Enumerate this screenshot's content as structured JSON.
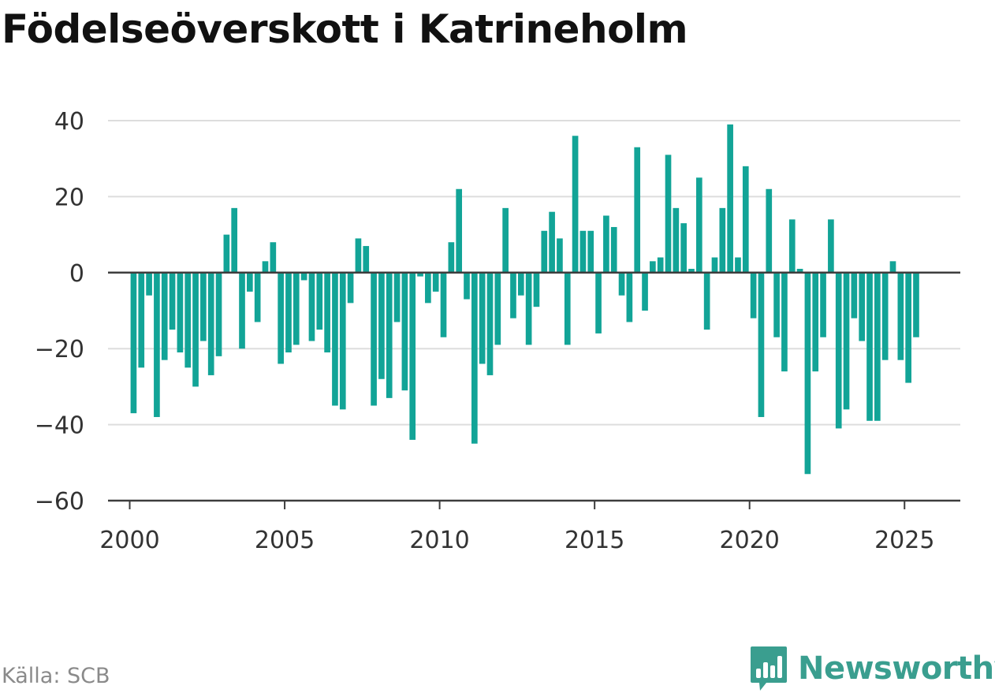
{
  "title": "Födelseöverskott i Katrineholm",
  "source": "Källa: SCB",
  "brand": {
    "name": "Newsworthy",
    "icon": "newsworthy-logo-icon",
    "color": "#3a9e8f"
  },
  "chart_data": {
    "type": "bar",
    "title": "Födelseöverskott i Katrineholm",
    "xlabel": "",
    "ylabel": "",
    "ylim": [
      -60,
      40
    ],
    "xlim": [
      1999.3,
      2026.8
    ],
    "y_ticks": [
      40,
      20,
      0,
      -20,
      -40,
      -60
    ],
    "y_tick_labels": [
      "40",
      "20",
      "0",
      "−20",
      "−40",
      "−60"
    ],
    "x_ticks": [
      2000,
      2005,
      2010,
      2015,
      2020,
      2025
    ],
    "x_tick_labels": [
      "2000",
      "2005",
      "2010",
      "2015",
      "2020",
      "2025"
    ],
    "grid": true,
    "bar_color": "#12a497",
    "frequency": "quarterly",
    "x": [
      "2000 Q1",
      "2000 Q2",
      "2000 Q3",
      "2000 Q4",
      "2001 Q1",
      "2001 Q2",
      "2001 Q3",
      "2001 Q4",
      "2002 Q1",
      "2002 Q2",
      "2002 Q3",
      "2002 Q4",
      "2003 Q1",
      "2003 Q2",
      "2003 Q3",
      "2003 Q4",
      "2004 Q1",
      "2004 Q2",
      "2004 Q3",
      "2004 Q4",
      "2005 Q1",
      "2005 Q2",
      "2005 Q3",
      "2005 Q4",
      "2006 Q1",
      "2006 Q2",
      "2006 Q3",
      "2006 Q4",
      "2007 Q1",
      "2007 Q2",
      "2007 Q3",
      "2007 Q4",
      "2008 Q1",
      "2008 Q2",
      "2008 Q3",
      "2008 Q4",
      "2009 Q1",
      "2009 Q2",
      "2009 Q3",
      "2009 Q4",
      "2010 Q1",
      "2010 Q2",
      "2010 Q3",
      "2010 Q4",
      "2011 Q1",
      "2011 Q2",
      "2011 Q3",
      "2011 Q4",
      "2012 Q1",
      "2012 Q2",
      "2012 Q3",
      "2012 Q4",
      "2013 Q1",
      "2013 Q2",
      "2013 Q3",
      "2013 Q4",
      "2014 Q1",
      "2014 Q2",
      "2014 Q3",
      "2014 Q4",
      "2015 Q1",
      "2015 Q2",
      "2015 Q3",
      "2015 Q4",
      "2016 Q1",
      "2016 Q2",
      "2016 Q3",
      "2016 Q4",
      "2017 Q1",
      "2017 Q2",
      "2017 Q3",
      "2017 Q4",
      "2018 Q1",
      "2018 Q2",
      "2018 Q3",
      "2018 Q4",
      "2019 Q1",
      "2019 Q2",
      "2019 Q3",
      "2019 Q4",
      "2020 Q1",
      "2020 Q2",
      "2020 Q3",
      "2020 Q4",
      "2021 Q1",
      "2021 Q2",
      "2021 Q3",
      "2021 Q4",
      "2022 Q1",
      "2022 Q2",
      "2022 Q3",
      "2022 Q4",
      "2023 Q1",
      "2023 Q2",
      "2023 Q3",
      "2023 Q4",
      "2024 Q1",
      "2024 Q2",
      "2024 Q3",
      "2024 Q4",
      "2025 Q1",
      "2025 Q2"
    ],
    "values": [
      -37,
      -25,
      -6,
      -38,
      -23,
      -15,
      -21,
      -25,
      -30,
      -18,
      -27,
      -22,
      10,
      17,
      -20,
      -5,
      -13,
      3,
      8,
      -24,
      -21,
      -19,
      -2,
      -18,
      -15,
      -21,
      -35,
      -36,
      -8,
      9,
      7,
      -35,
      -28,
      -33,
      -13,
      -31,
      -44,
      -1,
      -8,
      -5,
      -17,
      8,
      22,
      -7,
      -45,
      -24,
      -27,
      -19,
      17,
      -12,
      -6,
      -19,
      -9,
      11,
      16,
      9,
      -19,
      36,
      11,
      11,
      -16,
      15,
      12,
      -6,
      -13,
      33,
      -10,
      3,
      4,
      31,
      17,
      13,
      1,
      25,
      -15,
      4,
      17,
      39,
      4,
      28,
      -12,
      -38,
      22,
      -17,
      -26,
      14,
      1,
      -53,
      -26,
      -17,
      14,
      -41,
      -36,
      -12,
      -18,
      -39,
      -39,
      -23,
      3,
      -23,
      -29,
      -17
    ]
  }
}
